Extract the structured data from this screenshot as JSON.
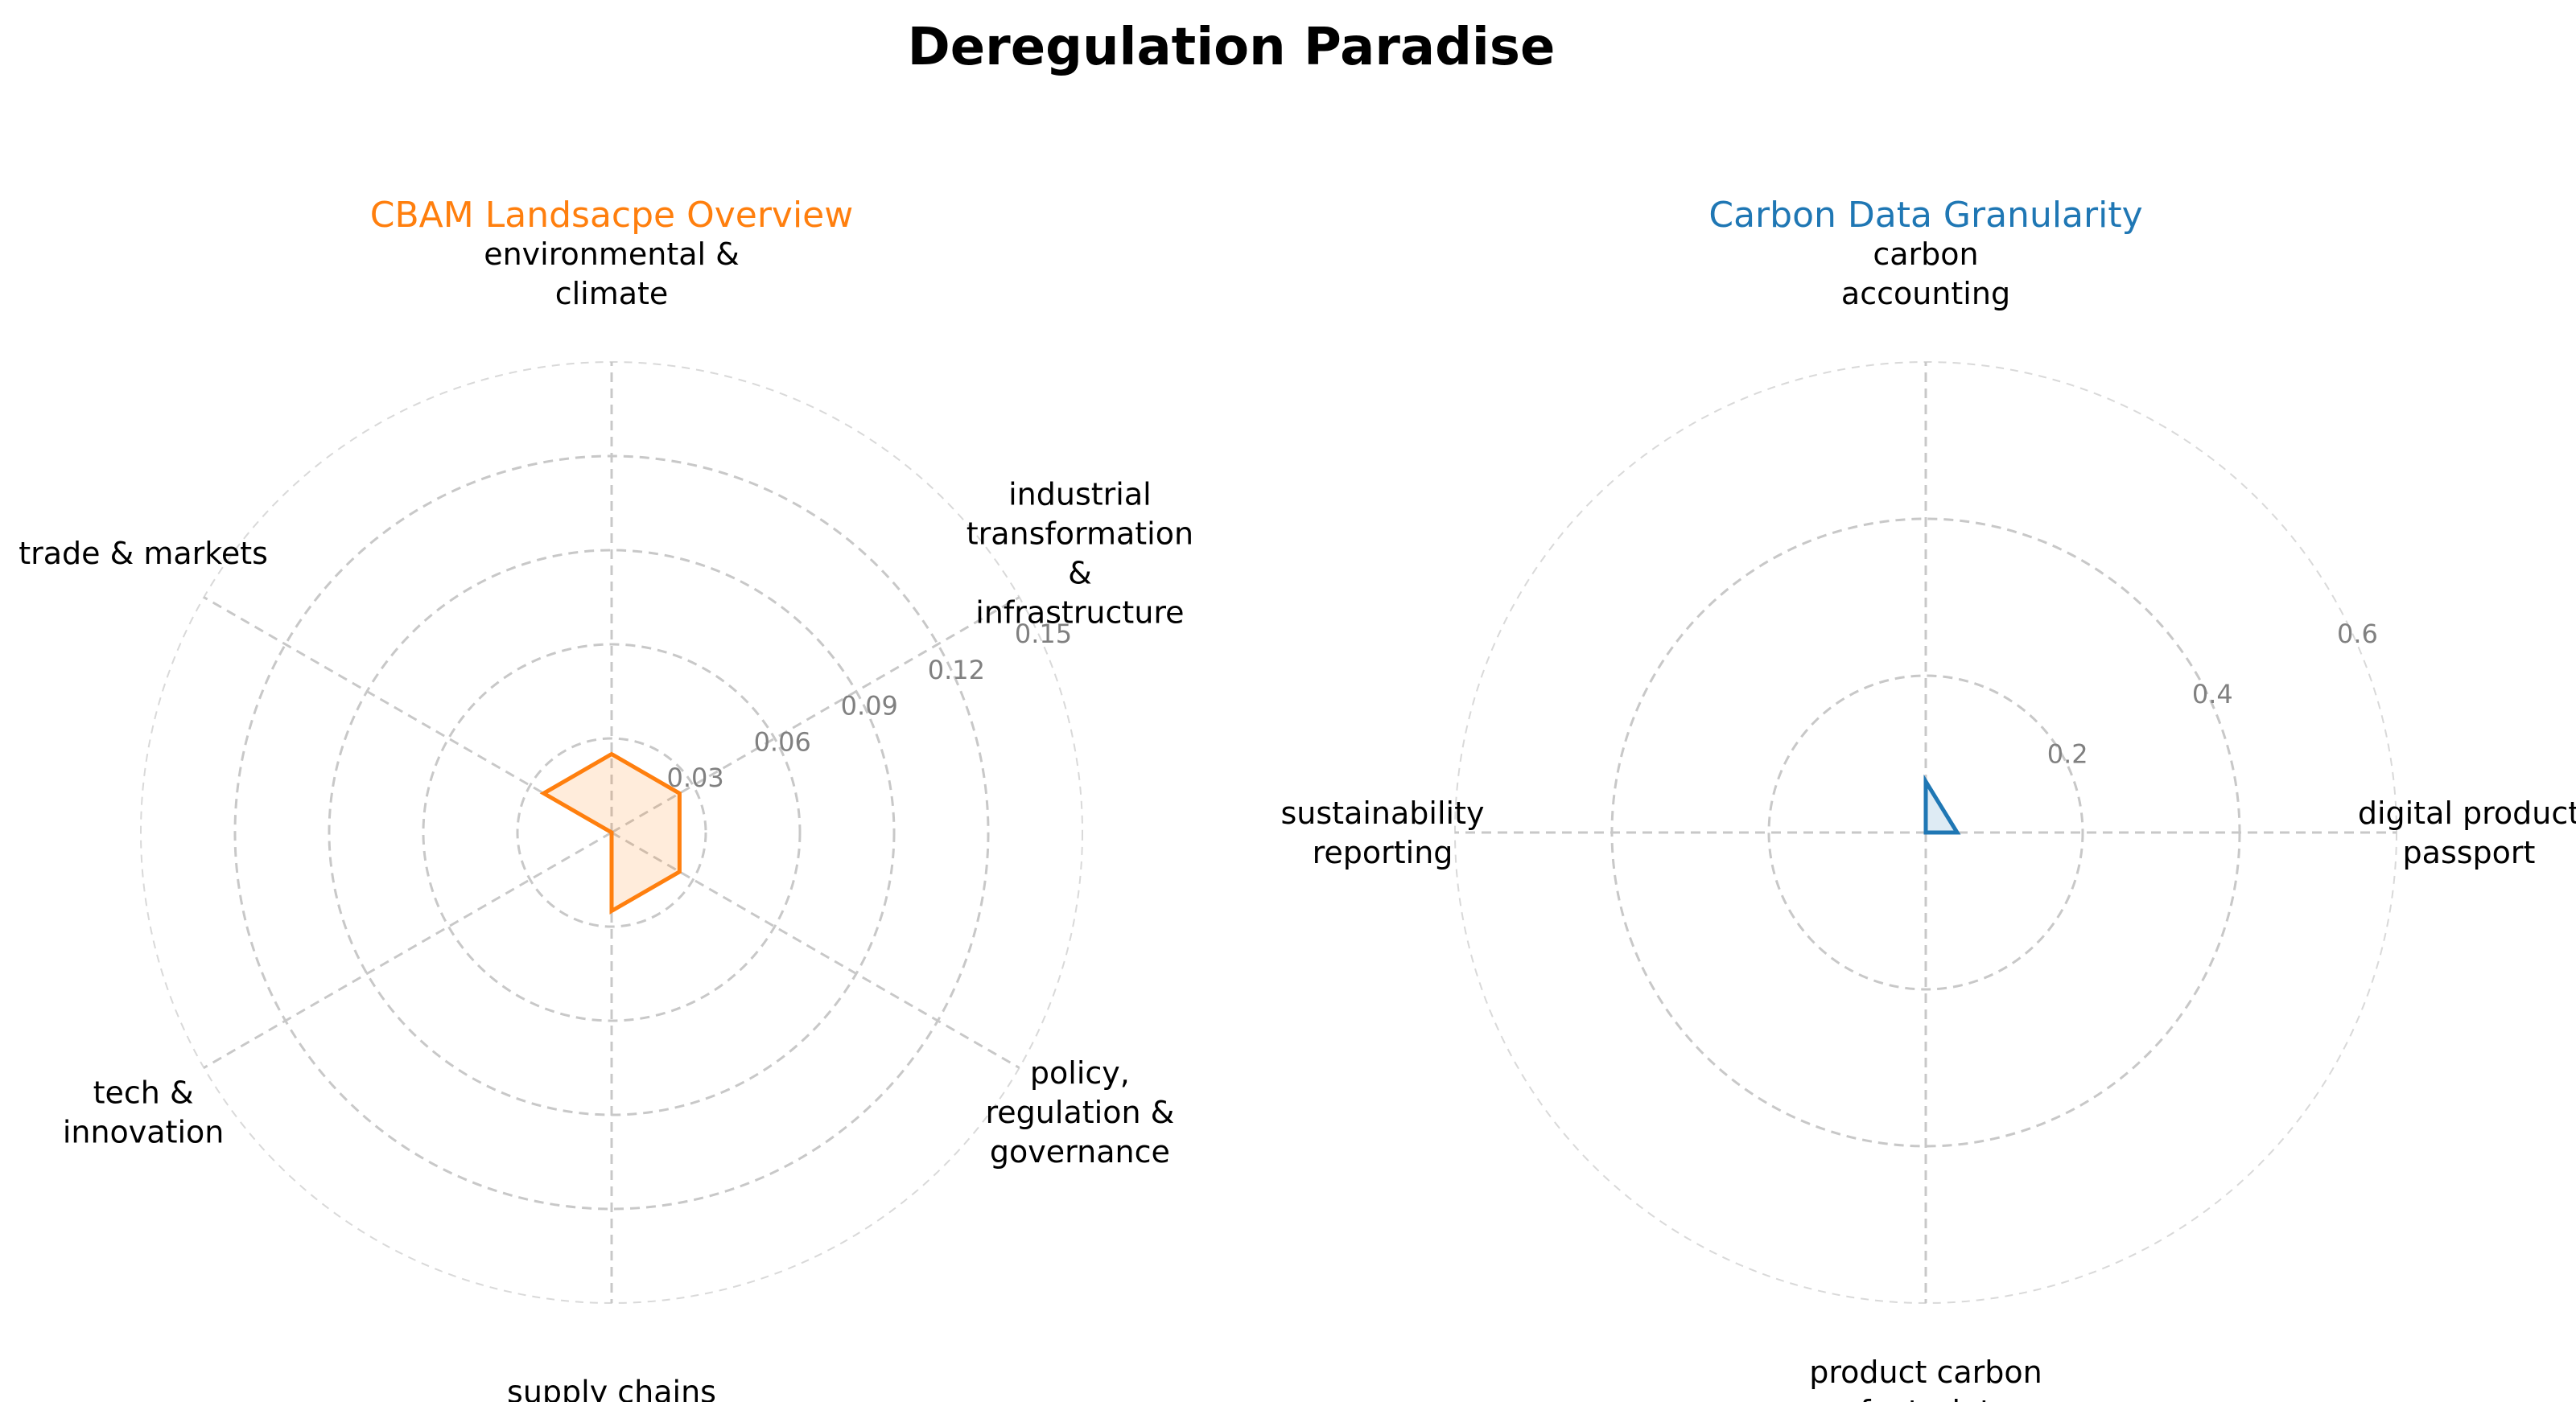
{
  "figure": {
    "title": "Deregulation Paradise"
  },
  "chart_data": [
    {
      "type": "radar",
      "title": "CBAM Landsacpe Overview",
      "title_color": "#ff7f0e",
      "line_color": "#ff7f0e",
      "fill_color": "#ff7f0e",
      "categories": [
        [
          "environmental &",
          "climate"
        ],
        [
          "industrial",
          "transformation",
          "&",
          "infrastructure"
        ],
        [
          "policy,",
          "regulation &",
          "governance"
        ],
        [
          "supply chains"
        ],
        [
          "tech &",
          "innovation"
        ],
        [
          "trade & markets"
        ]
      ],
      "values": [
        0.025,
        0.025,
        0.025,
        0.025,
        0.0,
        0.025
      ],
      "rmax": 0.15,
      "rticks": [
        0.03,
        0.06,
        0.09,
        0.12,
        0.15
      ],
      "rtick_labels": [
        "0.03",
        "0.06",
        "0.09",
        "0.12",
        "0.15"
      ],
      "grid": true
    },
    {
      "type": "radar",
      "title": "Carbon Data Granularity",
      "title_color": "#1f77b4",
      "line_color": "#1f77b4",
      "fill_color": "#1f77b4",
      "categories": [
        [
          "carbon",
          "accounting"
        ],
        [
          "digital product",
          "passport"
        ],
        [
          "product carbon",
          "footprint"
        ],
        [
          "sustainability",
          "reporting"
        ]
      ],
      "values": [
        0.065,
        0.04,
        0.0,
        0.0
      ],
      "rmax": 0.6,
      "rticks": [
        0.2,
        0.4,
        0.6
      ],
      "rtick_labels": [
        "0.2",
        "0.4",
        "0.6"
      ],
      "grid": true
    }
  ]
}
